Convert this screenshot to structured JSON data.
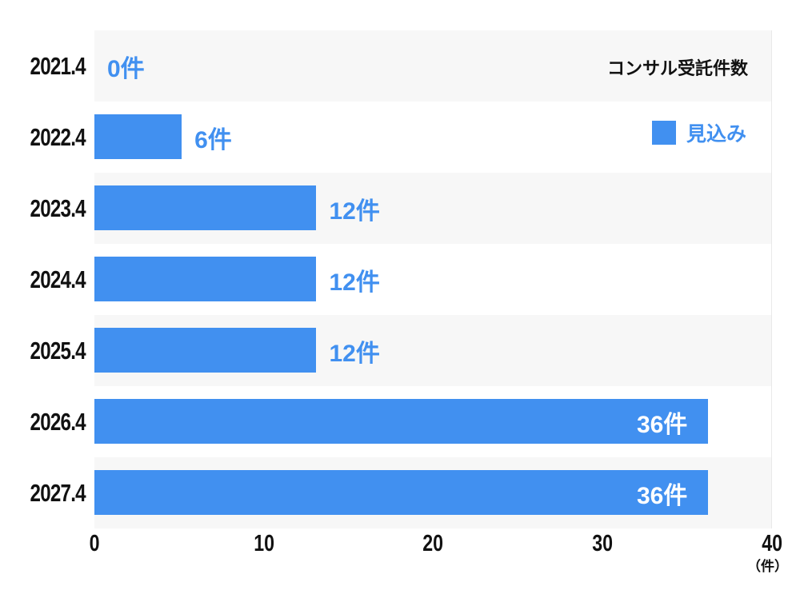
{
  "chart_data": {
    "type": "bar",
    "orientation": "horizontal",
    "title": "コンサル受託件数",
    "legend": {
      "label": "見込み",
      "position": "top-right",
      "swatch_color": "#4190F0"
    },
    "categories": [
      "2021.4",
      "2022.4",
      "2023.4",
      "2024.4",
      "2025.4",
      "2026.4",
      "2027.4"
    ],
    "series": [
      {
        "name": "見込み",
        "values": [
          0,
          6,
          12,
          12,
          12,
          36,
          36
        ]
      }
    ],
    "value_labels": [
      "0件",
      "6件",
      "12件",
      "12件",
      "12件",
      "36件",
      "36件"
    ],
    "value_label_placement": [
      "outside",
      "outside",
      "outside",
      "outside",
      "outside",
      "inside",
      "inside"
    ],
    "bar_display_pct": [
      0,
      12.9,
      32.8,
      32.8,
      32.8,
      90.7,
      90.7
    ],
    "xlim": [
      0,
      40
    ],
    "x_ticks": [
      "0",
      "10",
      "20",
      "30",
      "40"
    ],
    "x_unit": "（件）",
    "grid": "alternating-row-stripes",
    "colors": {
      "bar": "#4190F0",
      "value_label_outside": "#4190F0",
      "value_label_inside": "#FFFFFF",
      "stripe": "#F7F7F7",
      "axis_text": "#111111",
      "plot_right_border": "#E9E9E9",
      "background": "#FFFFFF"
    }
  }
}
